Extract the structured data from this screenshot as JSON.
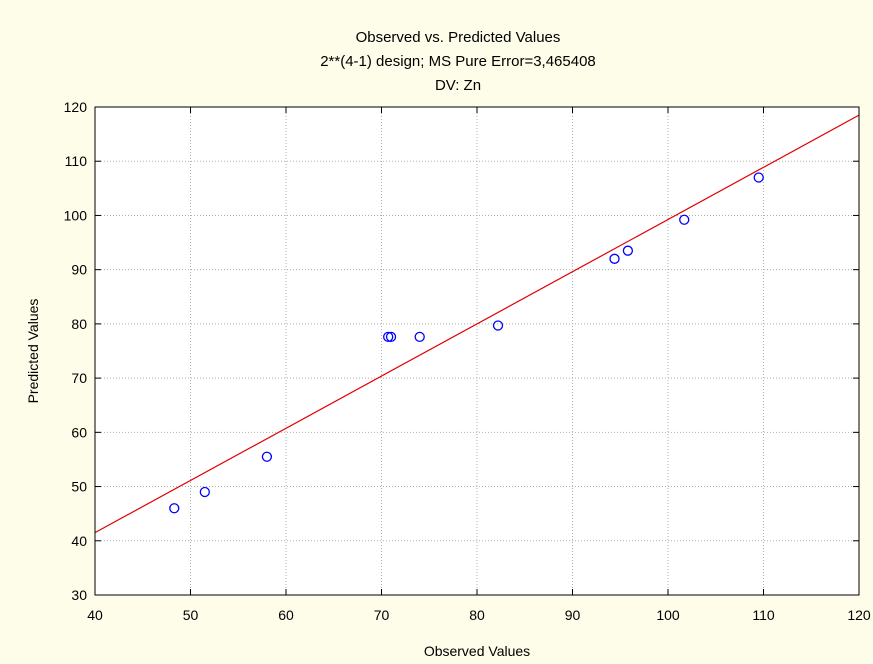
{
  "chart_data": {
    "type": "scatter",
    "title": "Observed vs. Predicted Values",
    "subtitle": "2**(4-1) design; MS Pure Error=3,465408",
    "subtitle2": "DV: Zn",
    "xlabel": "Observed Values",
    "ylabel": "Predicted Values",
    "xlim": [
      40,
      120
    ],
    "ylim": [
      30,
      120
    ],
    "xticks": [
      40,
      50,
      60,
      70,
      80,
      90,
      100,
      110,
      120
    ],
    "yticks": [
      30,
      40,
      50,
      60,
      70,
      80,
      90,
      100,
      110,
      120
    ],
    "grid": true,
    "points": [
      {
        "x": 48.3,
        "y": 46.0
      },
      {
        "x": 51.5,
        "y": 49.0
      },
      {
        "x": 58.0,
        "y": 55.5
      },
      {
        "x": 70.7,
        "y": 77.6
      },
      {
        "x": 71.0,
        "y": 77.6
      },
      {
        "x": 74.0,
        "y": 77.6
      },
      {
        "x": 82.2,
        "y": 79.7
      },
      {
        "x": 94.4,
        "y": 92.0
      },
      {
        "x": 95.8,
        "y": 93.5
      },
      {
        "x": 101.7,
        "y": 99.2
      },
      {
        "x": 109.5,
        "y": 107.0
      }
    ],
    "fit_line": {
      "x": [
        40,
        120
      ],
      "y": [
        41.5,
        118.5
      ]
    },
    "colors": {
      "points": "#0000ff",
      "fit_line": "#e00000",
      "background": "#fdfde9",
      "plot_bg": "#ffffff",
      "grid": "#b0b0b0"
    }
  }
}
